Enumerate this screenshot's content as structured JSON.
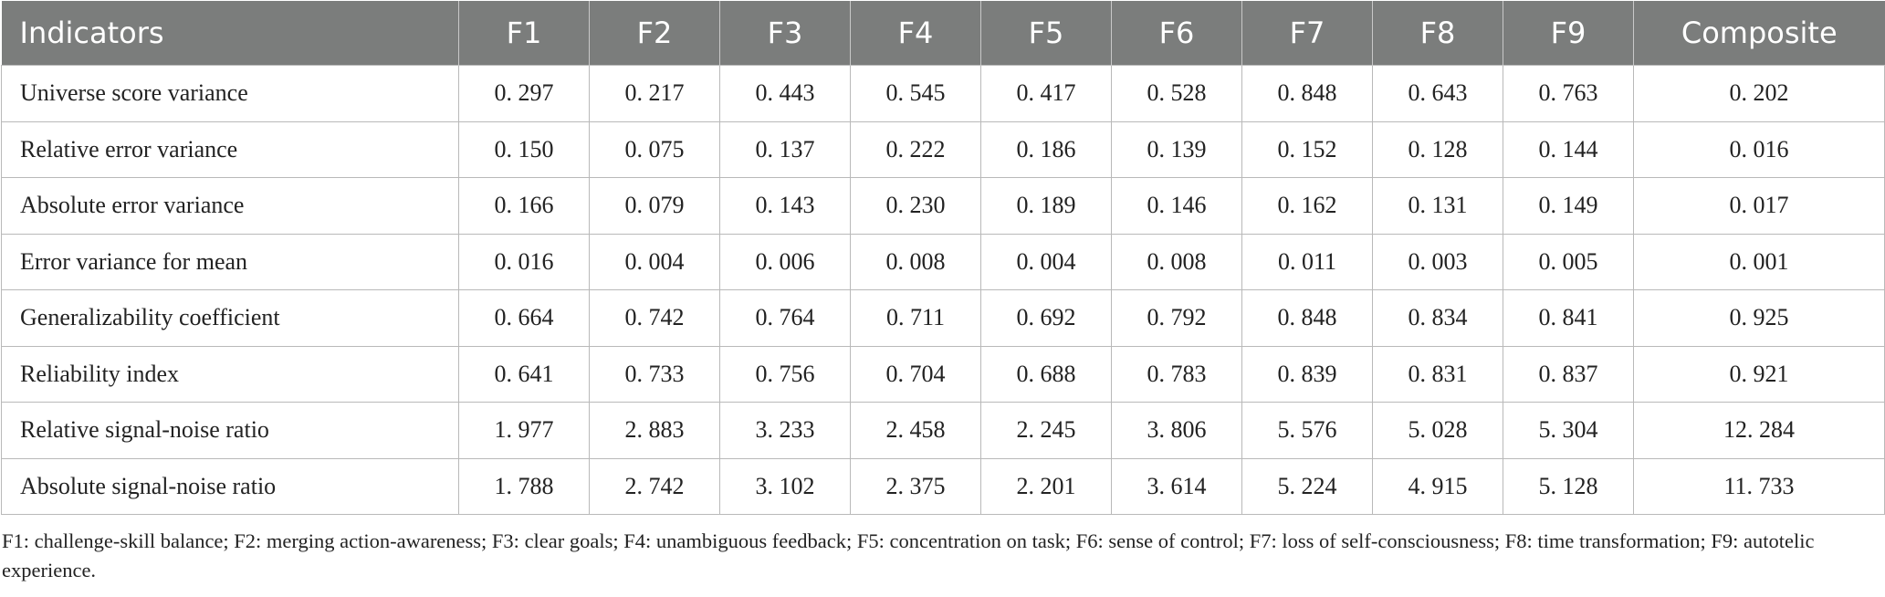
{
  "table": {
    "headers": [
      "Indicators",
      "F1",
      "F2",
      "F3",
      "F4",
      "F5",
      "F6",
      "F7",
      "F8",
      "F9",
      "Composite"
    ],
    "rows": [
      {
        "label": "Universe score variance",
        "values": [
          "0. 297",
          "0. 217",
          "0. 443",
          "0. 545",
          "0. 417",
          "0. 528",
          "0. 848",
          "0. 643",
          "0. 763",
          "0. 202"
        ]
      },
      {
        "label": "Relative error variance",
        "values": [
          "0. 150",
          "0. 075",
          "0. 137",
          "0. 222",
          "0. 186",
          "0. 139",
          "0. 152",
          "0. 128",
          "0. 144",
          "0. 016"
        ]
      },
      {
        "label": "Absolute error variance",
        "values": [
          "0. 166",
          "0. 079",
          "0. 143",
          "0. 230",
          "0. 189",
          "0. 146",
          "0. 162",
          "0. 131",
          "0. 149",
          "0. 017"
        ]
      },
      {
        "label": "Error variance for mean",
        "values": [
          "0. 016",
          "0. 004",
          "0. 006",
          "0. 008",
          "0. 004",
          "0. 008",
          "0. 011",
          "0. 003",
          "0. 005",
          "0. 001"
        ]
      },
      {
        "label": "Generalizability coefficient",
        "values": [
          "0. 664",
          "0. 742",
          "0. 764",
          "0. 711",
          "0. 692",
          "0. 792",
          "0. 848",
          "0. 834",
          "0. 841",
          "0. 925"
        ]
      },
      {
        "label": "Reliability index",
        "values": [
          "0. 641",
          "0. 733",
          "0. 756",
          "0. 704",
          "0. 688",
          "0. 783",
          "0. 839",
          "0. 831",
          "0. 837",
          "0. 921"
        ]
      },
      {
        "label": "Relative signal-noise ratio",
        "values": [
          "1. 977",
          "2. 883",
          "3. 233",
          "2. 458",
          "2. 245",
          "3. 806",
          "5. 576",
          "5. 028",
          "5. 304",
          "12. 284"
        ]
      },
      {
        "label": "Absolute signal-noise ratio",
        "values": [
          "1. 788",
          "2. 742",
          "3. 102",
          "2. 375",
          "2. 201",
          "3. 614",
          "5. 224",
          "4. 915",
          "5. 128",
          "11. 733"
        ]
      }
    ]
  },
  "footnote": "F1: challenge-skill balance; F2: merging action-awareness; F3: clear goals; F4: unambiguous feedback; F5: concentration on task; F6: sense of control; F7: loss of self-consciousness; F8: time transformation; F9: autotelic experience.",
  "colors": {
    "header_bg": "#7b7d7c",
    "header_text": "#ffffff",
    "border": "#b9b9b9"
  }
}
